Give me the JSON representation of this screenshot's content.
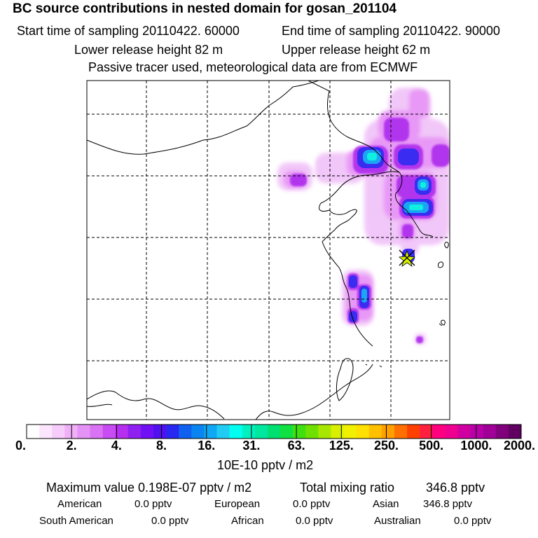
{
  "header": {
    "title": "BC  source contributions in nested domain for gosan_201104",
    "start": "Start time of sampling 20110422. 60000",
    "end": "End time of sampling 20110422. 90000",
    "lower": "Lower release height   82 m",
    "upper": "Upper release height   62 m",
    "tracer": "Passive tracer used, meteorological data are from ECMWF"
  },
  "colorbar": {
    "colors": [
      "#ffffff",
      "#fbe6fd",
      "#f6ccfb",
      "#f0b0f8",
      "#e492f6",
      "#da72f4",
      "#c84cf2",
      "#b62ef0",
      "#9020f0",
      "#7010f4",
      "#5010f0",
      "#2828f0",
      "#1060f0",
      "#0a84f0",
      "#10a8f4",
      "#20ccf4",
      "#00fff0",
      "#00f0c0",
      "#00e8a0",
      "#00e070",
      "#10e040",
      "#40e010",
      "#70e000",
      "#a8e800",
      "#d8f000",
      "#f0f000",
      "#ffe000",
      "#ffc000",
      "#ffa000",
      "#ff7000",
      "#ff4000",
      "#ff2040",
      "#ff0080",
      "#f00090",
      "#d000a0",
      "#b800a8",
      "#a00098",
      "#80007c",
      "#600060"
    ],
    "labels": [
      "0.",
      "2.",
      "4.",
      "8.",
      "16.",
      "31.",
      "63.",
      "125.",
      "250.",
      "500.",
      "1000.",
      "2000."
    ],
    "unit": "10E-10 pptv / m2"
  },
  "summary": {
    "max": "Maximum value  0.198E-07 pptv / m2",
    "total_label": "Total mixing ratio",
    "total_value": "346.8 pptv",
    "regions": [
      {
        "name": "American",
        "value": "0.0 pptv"
      },
      {
        "name": "European",
        "value": "0.0 pptv"
      },
      {
        "name": "Asian",
        "value": "346.8 pptv"
      },
      {
        "name": "South American",
        "value": "0.0 pptv"
      },
      {
        "name": "African",
        "value": "0.0 pptv"
      },
      {
        "name": "Australian",
        "value": "0.0 pptv"
      }
    ]
  }
}
